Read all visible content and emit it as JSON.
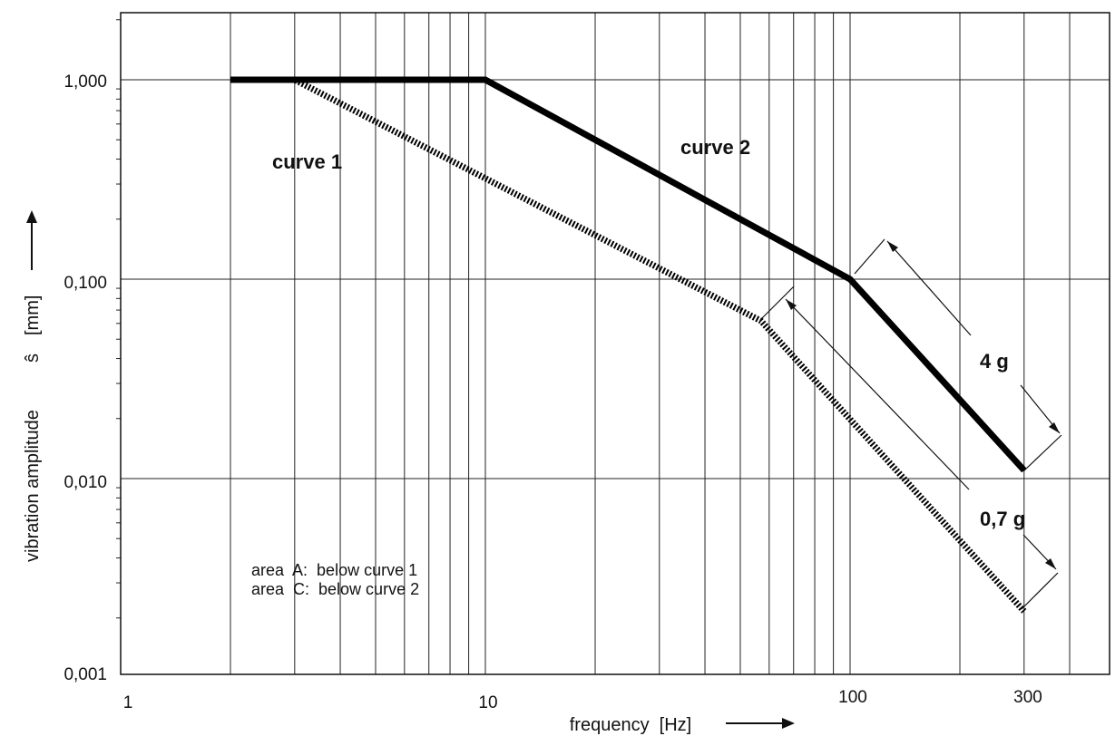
{
  "chart_data": {
    "type": "line",
    "x_scale": "log",
    "y_scale": "log",
    "xlim": [
      1,
      400
    ],
    "ylim": [
      0.001,
      2.2
    ],
    "grid": true,
    "xlabel": "frequency  [Hz]",
    "ylabel": "vibration amplitude",
    "ylabel_symbol": "ŝ",
    "ylabel_unit": "[mm]",
    "x_ticks": [
      {
        "value": 1,
        "label": "1"
      },
      {
        "value": 10,
        "label": "10"
      },
      {
        "value": 100,
        "label": "100"
      },
      {
        "value": 300,
        "label": "300"
      }
    ],
    "y_ticks": [
      {
        "value": 0.001,
        "label": "0,001"
      },
      {
        "value": 0.01,
        "label": "0,010"
      },
      {
        "value": 0.1,
        "label": "0,100"
      },
      {
        "value": 1,
        "label": "1,000"
      }
    ],
    "series": [
      {
        "name": "curve 1",
        "style": "hatched",
        "x": [
          2,
          3,
          57,
          300
        ],
        "y": [
          1.0,
          1.0,
          0.0617,
          0.00216
        ]
      },
      {
        "name": "curve 2",
        "style": "solid",
        "x": [
          2,
          10,
          100,
          300
        ],
        "y": [
          1.0,
          1.0,
          0.1,
          0.011
        ]
      }
    ],
    "annotations": {
      "acc_4g": "4 g",
      "acc_07g": "0,7 g",
      "legend_line1": "area  A:  below curve 1",
      "legend_line2": "area  C:  below curve 2"
    }
  }
}
